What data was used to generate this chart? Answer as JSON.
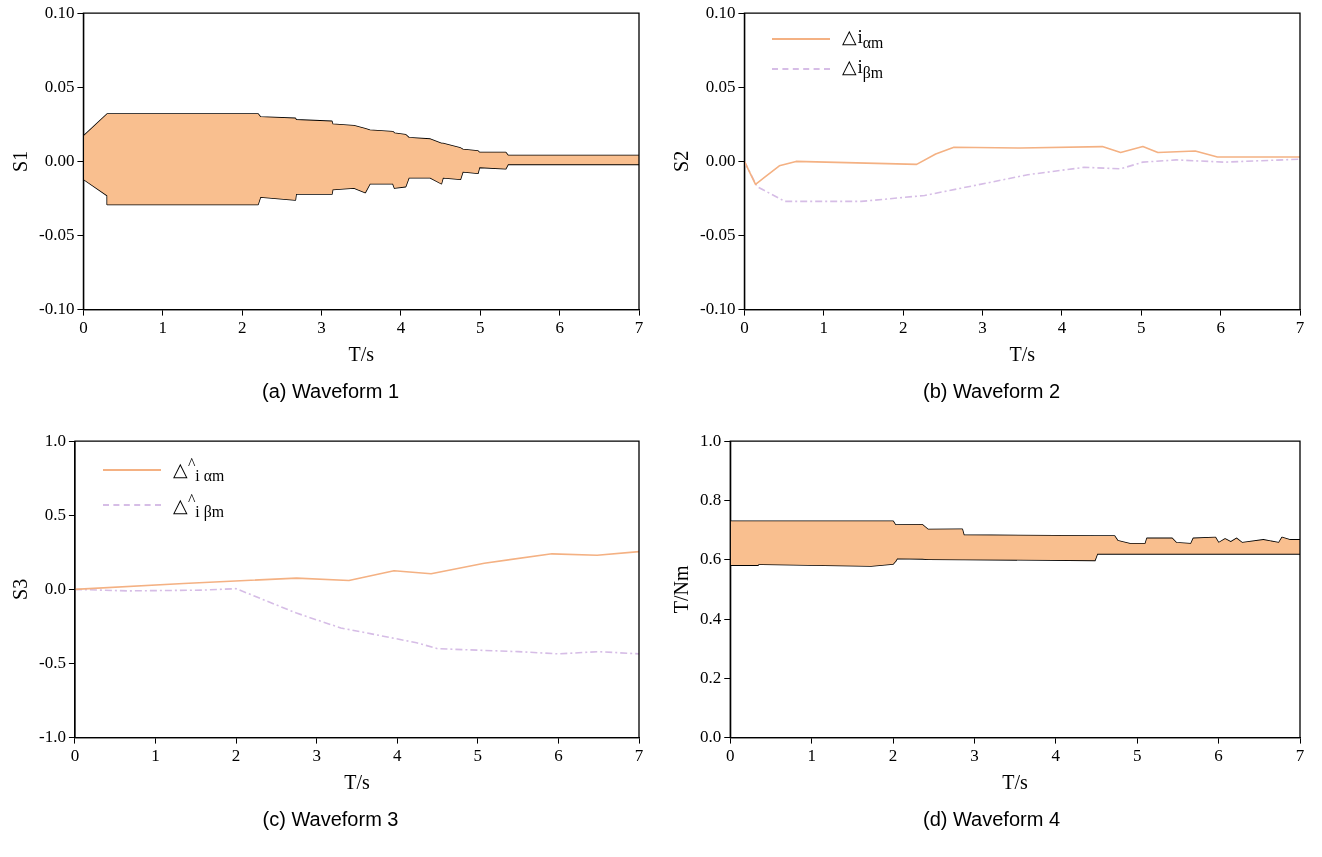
{
  "chart_data": [
    {
      "type": "line",
      "title": "(a) Waveform 1",
      "xlabel": "T/s",
      "ylabel": "S1",
      "xlim": [
        0,
        7
      ],
      "ylim": [
        -0.1,
        0.1
      ],
      "xticks": [
        0,
        1,
        2,
        3,
        4,
        5,
        6,
        7
      ],
      "yticks": [
        {
          "value": -0.1,
          "label": "-0.10"
        },
        {
          "value": -0.05,
          "label": "-0.05"
        },
        {
          "value": 0,
          "label": "0.00"
        },
        {
          "value": 0.05,
          "label": "0.05"
        },
        {
          "value": 0.1,
          "label": "0.10"
        }
      ],
      "series": [
        {
          "color": "#000000",
          "x": [
            0,
            0.3,
            0.3,
            2.2,
            2.23,
            2.67,
            2.68,
            3.13,
            3.14,
            3.41,
            3.55,
            3.61,
            3.9,
            3.92,
            4.06,
            4.1,
            4.37,
            4.51,
            4.53,
            4.75,
            4.78,
            4.97,
            4.99,
            5.32,
            5.35,
            7
          ],
          "values": [
            0.017,
            0.032,
            0.032,
            0.032,
            0.03,
            0.029,
            0.028,
            0.027,
            0.025,
            0.024,
            0.022,
            0.021,
            0.02,
            0.019,
            0.018,
            0.016,
            0.015,
            0.012,
            0.012,
            0.009,
            0.008,
            0.007,
            0.006,
            0.006,
            0.004,
            0.004
          ],
          "lower": [
            -0.012,
            -0.023,
            -0.029,
            -0.029,
            -0.024,
            -0.026,
            -0.022,
            -0.022,
            -0.019,
            -0.018,
            -0.021,
            -0.015,
            -0.015,
            -0.018,
            -0.017,
            -0.011,
            -0.011,
            -0.015,
            -0.011,
            -0.012,
            -0.007,
            -0.008,
            -0.004,
            -0.005,
            -0.002,
            -0.002
          ],
          "upper": [
            0.017,
            0.032,
            0.032,
            0.032,
            0.03,
            0.029,
            0.028,
            0.027,
            0.025,
            0.024,
            0.022,
            0.021,
            0.02,
            0.019,
            0.018,
            0.016,
            0.015,
            0.012,
            0.012,
            0.009,
            0.008,
            0.007,
            0.006,
            0.006,
            0.004,
            0.004
          ]
        },
        {
          "color": "#000000",
          "x": [
            0,
            0.3,
            0.3,
            2.2,
            2.23,
            2.67,
            2.68,
            3.13,
            3.14,
            3.41,
            3.55,
            3.61,
            3.9,
            3.92,
            4.06,
            4.1,
            4.37,
            4.51,
            4.53,
            4.75,
            4.78,
            4.97,
            4.99,
            5.32,
            5.35,
            7
          ],
          "values": [
            -0.012,
            -0.023,
            -0.029,
            -0.029,
            -0.024,
            -0.026,
            -0.022,
            -0.022,
            -0.019,
            -0.018,
            -0.021,
            -0.015,
            -0.015,
            -0.018,
            -0.017,
            -0.011,
            -0.011,
            -0.015,
            -0.011,
            -0.012,
            -0.007,
            -0.008,
            -0.004,
            -0.005,
            -0.002,
            -0.002
          ]
        }
      ]
    },
    {
      "type": "line",
      "title": "(b) Waveform 2",
      "xlabel": "T/s",
      "ylabel": "S2",
      "xlim": [
        0,
        7
      ],
      "ylim": [
        -0.1,
        0.1
      ],
      "legend": "top left",
      "xticks": [
        0,
        1,
        2,
        3,
        4,
        5,
        6,
        7
      ],
      "yticks": [
        {
          "value": -0.1,
          "label": "-0.10"
        },
        {
          "value": -0.05,
          "label": "-0.05"
        },
        {
          "value": 0,
          "label": "0.00"
        },
        {
          "value": 0.05,
          "label": "0.05"
        },
        {
          "value": 0.1,
          "label": "0.10"
        }
      ],
      "series": [
        {
          "name": "△i$_{αm}$",
          "color": "#f4b183",
          "line_style": "solid",
          "x": [
            0,
            0.14,
            0.44,
            0.65,
            2.17,
            2.41,
            2.64,
            3.48,
            4.51,
            4.74,
            5.02,
            5.21,
            5.68,
            5.96,
            7
          ],
          "values": [
            0,
            -0.0155,
            -0.003,
            0,
            -0.002,
            0.005,
            0.0095,
            0.009,
            0.01,
            0.006,
            0.01,
            0.006,
            0.007,
            0.003,
            0.003
          ]
        },
        {
          "name": "△i$_{βm}$",
          "color": "#d6bde6",
          "line_style": "dashed",
          "x": [
            0,
            0.16,
            0.51,
            1.47,
            2.27,
            3.11,
            3.57,
            4.28,
            4.74,
            5.02,
            5.44,
            6.05,
            7
          ],
          "values": [
            0,
            -0.017,
            -0.027,
            -0.027,
            -0.023,
            -0.014,
            -0.009,
            -0.004,
            -0.005,
            -0.0005,
            0.001,
            -0.0005,
            0.0015
          ]
        }
      ]
    },
    {
      "type": "line",
      "title": "(c) Waveform 3",
      "xlabel": "T/s",
      "ylabel": "S3",
      "xlim": [
        0,
        7
      ],
      "ylim": [
        -1,
        1
      ],
      "legend": "top left",
      "xticks": [
        0,
        1,
        2,
        3,
        4,
        5,
        6,
        7
      ],
      "yticks": [
        {
          "value": -1,
          "label": "-1.0"
        },
        {
          "value": -0.5,
          "label": "-0.5"
        },
        {
          "value": 0,
          "label": "0.0"
        },
        {
          "value": 0.5,
          "label": "0.5"
        },
        {
          "value": 1,
          "label": "1.0"
        }
      ],
      "series": [
        {
          "name": "△$^{^}$$_{i αm}$",
          "color": "#f4b183",
          "line_style": "solid",
          "x": [
            0,
            1.35,
            2.75,
            3.4,
            3.96,
            4.42,
            5.08,
            5.92,
            6.48,
            7
          ],
          "values": [
            0,
            0.04,
            0.076,
            0.06,
            0.126,
            0.106,
            0.177,
            0.24,
            0.23,
            0.255
          ]
        },
        {
          "name": "△$^{^}$$_{i βm}$",
          "color": "#d6bde6",
          "line_style": "dashed",
          "x": [
            0,
            0.65,
            1.58,
            2,
            2.75,
            3.3,
            3.68,
            4.24,
            4.5,
            5,
            5.5,
            6,
            6.5,
            7
          ],
          "values": [
            0,
            -0.01,
            -0.005,
            0.005,
            -0.16,
            -0.26,
            -0.3,
            -0.36,
            -0.4,
            -0.41,
            -0.42,
            -0.435,
            -0.42,
            -0.435
          ]
        }
      ]
    },
    {
      "type": "line",
      "title": "(d) Waveform 4",
      "xlabel": "T/s",
      "ylabel": "T/Nm",
      "xlim": [
        0,
        7
      ],
      "ylim": [
        0,
        1
      ],
      "xticks": [
        0,
        1,
        2,
        3,
        4,
        5,
        6,
        7
      ],
      "yticks": [
        {
          "value": 0,
          "label": "0.0"
        },
        {
          "value": 0.2,
          "label": "0.2"
        },
        {
          "value": 0.4,
          "label": "0.4"
        },
        {
          "value": 0.6,
          "label": "0.6"
        },
        {
          "value": 0.8,
          "label": "0.8"
        },
        {
          "value": 1,
          "label": "1.0"
        }
      ],
      "series": [
        {
          "color": "#000000",
          "x": [
            0,
            0.34,
            0.35,
            1.73,
            2,
            2.03,
            2.05,
            2.36,
            2.43,
            2.85,
            2.87,
            4.48,
            4.51,
            4.72,
            4.76,
            4.91,
            5.1,
            5.12,
            5.43,
            5.48,
            5.66,
            5.69,
            5.96,
            6,
            6.08,
            6.15,
            6.22,
            6.29,
            6.55,
            6.74,
            6.78,
            6.88,
            7
          ],
          "values": [
            0.73,
            0.73,
            0.73,
            0.73,
            0.73,
            0.717,
            0.717,
            0.718,
            0.702,
            0.703,
            0.683,
            0.68,
            0.68,
            0.68,
            0.664,
            0.654,
            0.654,
            0.672,
            0.672,
            0.657,
            0.654,
            0.672,
            0.675,
            0.657,
            0.67,
            0.66,
            0.672,
            0.657,
            0.667,
            0.657,
            0.675,
            0.667,
            0.667
          ],
          "upper": [
            0.73,
            0.73,
            0.73,
            0.73,
            0.73,
            0.717,
            0.717,
            0.718,
            0.702,
            0.703,
            0.683,
            0.68,
            0.68,
            0.68,
            0.664,
            0.654,
            0.654,
            0.672,
            0.672,
            0.657,
            0.654,
            0.672,
            0.675,
            0.657,
            0.67,
            0.66,
            0.672,
            0.657,
            0.667,
            0.657,
            0.675,
            0.667,
            0.667
          ],
          "lower": [
            0.582,
            0.582,
            0.585,
            0.579,
            0.586,
            0.595,
            0.604,
            0.603,
            0.602,
            0.601,
            0.601,
            0.598,
            0.62,
            0.62,
            0.62,
            0.62,
            0.62,
            0.62,
            0.62,
            0.62,
            0.62,
            0.62,
            0.62,
            0.62,
            0.62,
            0.62,
            0.62,
            0.62,
            0.62,
            0.62,
            0.62,
            0.62,
            0.62
          ]
        },
        {
          "color": "#000000",
          "x": [
            0,
            0.34,
            0.35,
            1.73,
            2,
            2.03,
            2.05,
            2.36,
            2.43,
            2.85,
            2.87,
            4.48,
            4.51,
            4.72,
            4.76,
            4.91,
            5.1,
            5.12,
            5.43,
            5.48,
            5.66,
            5.69,
            5.96,
            6,
            6.08,
            6.15,
            6.22,
            6.29,
            6.55,
            6.74,
            6.78,
            6.88,
            7
          ],
          "values": [
            0.582,
            0.582,
            0.585,
            0.579,
            0.586,
            0.595,
            0.604,
            0.603,
            0.602,
            0.601,
            0.601,
            0.598,
            0.62,
            0.62,
            0.62,
            0.62,
            0.62,
            0.62,
            0.62,
            0.62,
            0.62,
            0.62,
            0.62,
            0.62,
            0.62,
            0.62,
            0.62,
            0.62,
            0.62,
            0.62,
            0.62,
            0.62,
            0.62
          ]
        }
      ]
    }
  ]
}
